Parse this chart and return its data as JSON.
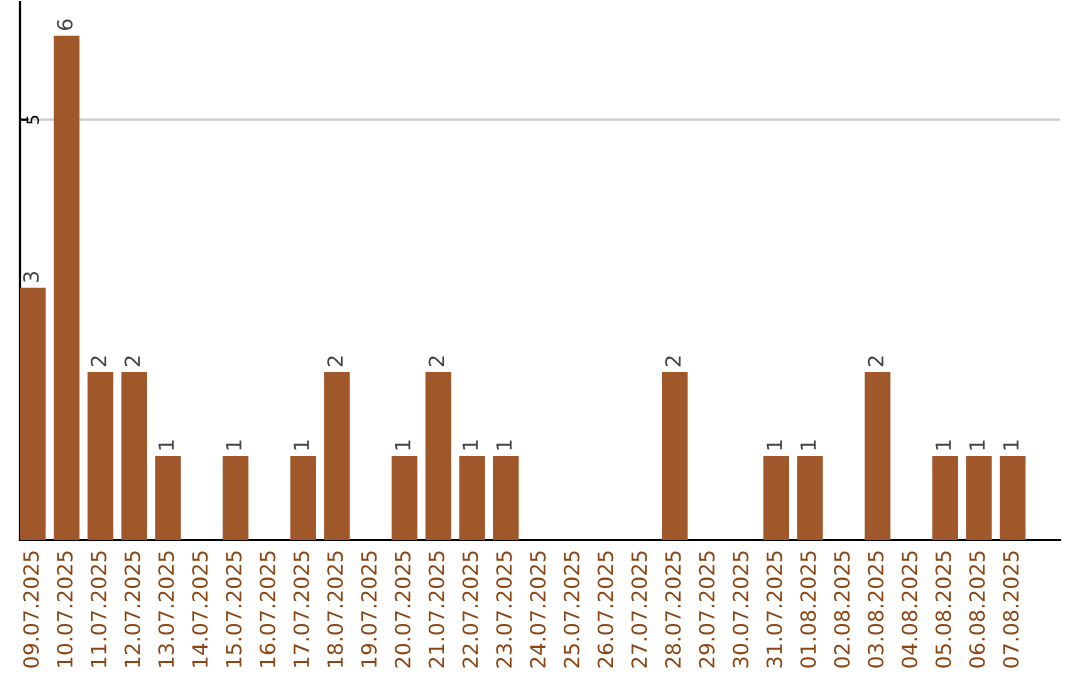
{
  "chart_data": {
    "type": "bar",
    "categories": [
      "09.07.2025",
      "10.07.2025",
      "11.07.2025",
      "12.07.2025",
      "13.07.2025",
      "14.07.2025",
      "15.07.2025",
      "16.07.2025",
      "17.07.2025",
      "18.07.2025",
      "19.07.2025",
      "20.07.2025",
      "21.07.2025",
      "22.07.2025",
      "23.07.2025",
      "24.07.2025",
      "25.07.2025",
      "26.07.2025",
      "27.07.2025",
      "28.07.2025",
      "29.07.2025",
      "30.07.2025",
      "31.07.2025",
      "01.08.2025",
      "02.08.2025",
      "03.08.2025",
      "04.08.2025",
      "05.08.2025",
      "06.08.2025",
      "07.08.2025"
    ],
    "values": [
      3,
      6,
      2,
      2,
      1,
      0,
      1,
      0,
      1,
      2,
      0,
      1,
      2,
      1,
      1,
      0,
      0,
      0,
      0,
      2,
      0,
      0,
      1,
      1,
      0,
      2,
      0,
      1,
      1,
      1
    ],
    "value_labels": [
      "3",
      "6",
      "2",
      "2",
      "1",
      null,
      "1",
      null,
      "1",
      "2",
      null,
      "1",
      "2",
      "1",
      "1",
      null,
      null,
      null,
      null,
      "2",
      null,
      null,
      "1",
      "1",
      null,
      "2",
      null,
      "1",
      "1",
      "1"
    ],
    "color": "#a0572a",
    "ylim": [
      0,
      6.4
    ],
    "yticks": [
      5
    ],
    "grid": "y"
  }
}
